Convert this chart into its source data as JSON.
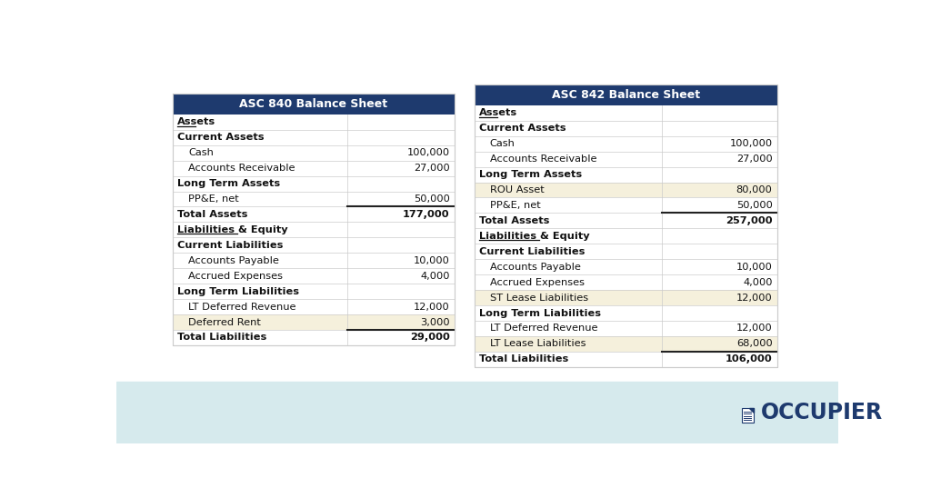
{
  "bg_color": "#ffffff",
  "header_bg": "#1e3a6e",
  "header_text_color": "#ffffff",
  "row_highlight": "#f5f0dc",
  "border_color": "#cccccc",
  "text_color": "#333333",
  "bold_color": "#111111",
  "footer_color": "#d6eaed",
  "occupier_text": "OCCUPIER",
  "occupier_color": "#1e3a6e",
  "left_table": {
    "title": "ASC 840 Balance Sheet",
    "rows": [
      {
        "label": "Assets",
        "value": "",
        "style": "underline_bold",
        "indent": 0,
        "highlight": false,
        "top_border": false
      },
      {
        "label": "Current Assets",
        "value": "",
        "style": "bold",
        "indent": 0,
        "highlight": false,
        "top_border": false
      },
      {
        "label": "Cash",
        "value": "100,000",
        "style": "normal",
        "indent": 1,
        "highlight": false,
        "top_border": false
      },
      {
        "label": "Accounts Receivable",
        "value": "27,000",
        "style": "normal",
        "indent": 1,
        "highlight": false,
        "top_border": false
      },
      {
        "label": "Long Term Assets",
        "value": "",
        "style": "bold",
        "indent": 0,
        "highlight": false,
        "top_border": false
      },
      {
        "label": "PP&E, net",
        "value": "50,000",
        "style": "normal",
        "indent": 1,
        "highlight": false,
        "top_border": false
      },
      {
        "label": "Total Assets",
        "value": "177,000",
        "style": "total",
        "indent": 0,
        "highlight": false,
        "top_border": true
      },
      {
        "label": "Liabilities & Equity",
        "value": "",
        "style": "underline_bold",
        "indent": 0,
        "highlight": false,
        "top_border": false
      },
      {
        "label": "Current Liabilities",
        "value": "",
        "style": "bold",
        "indent": 0,
        "highlight": false,
        "top_border": false
      },
      {
        "label": "Accounts Payable",
        "value": "10,000",
        "style": "normal",
        "indent": 1,
        "highlight": false,
        "top_border": false
      },
      {
        "label": "Accrued Expenses",
        "value": "4,000",
        "style": "normal",
        "indent": 1,
        "highlight": false,
        "top_border": false
      },
      {
        "label": "Long Term Liabilities",
        "value": "",
        "style": "bold",
        "indent": 0,
        "highlight": false,
        "top_border": false
      },
      {
        "label": "LT Deferred Revenue",
        "value": "12,000",
        "style": "normal",
        "indent": 1,
        "highlight": false,
        "top_border": false
      },
      {
        "label": "Deferred Rent",
        "value": "3,000",
        "style": "normal",
        "indent": 1,
        "highlight": true,
        "top_border": false
      },
      {
        "label": "Total Liabilities",
        "value": "29,000",
        "style": "total",
        "indent": 0,
        "highlight": false,
        "top_border": true
      }
    ]
  },
  "right_table": {
    "title": "ASC 842 Balance Sheet",
    "rows": [
      {
        "label": "Assets",
        "value": "",
        "style": "underline_bold",
        "indent": 0,
        "highlight": false,
        "top_border": false
      },
      {
        "label": "Current Assets",
        "value": "",
        "style": "bold",
        "indent": 0,
        "highlight": false,
        "top_border": false
      },
      {
        "label": "Cash",
        "value": "100,000",
        "style": "normal",
        "indent": 1,
        "highlight": false,
        "top_border": false
      },
      {
        "label": "Accounts Receivable",
        "value": "27,000",
        "style": "normal",
        "indent": 1,
        "highlight": false,
        "top_border": false
      },
      {
        "label": "Long Term Assets",
        "value": "",
        "style": "bold",
        "indent": 0,
        "highlight": false,
        "top_border": false
      },
      {
        "label": "ROU Asset",
        "value": "80,000",
        "style": "normal",
        "indent": 1,
        "highlight": true,
        "top_border": false
      },
      {
        "label": "PP&E, net",
        "value": "50,000",
        "style": "normal",
        "indent": 1,
        "highlight": false,
        "top_border": false
      },
      {
        "label": "Total Assets",
        "value": "257,000",
        "style": "total",
        "indent": 0,
        "highlight": false,
        "top_border": true
      },
      {
        "label": "Liabilities & Equity",
        "value": "",
        "style": "underline_bold",
        "indent": 0,
        "highlight": false,
        "top_border": false
      },
      {
        "label": "Current Liabilities",
        "value": "",
        "style": "bold",
        "indent": 0,
        "highlight": false,
        "top_border": false
      },
      {
        "label": "Accounts Payable",
        "value": "10,000",
        "style": "normal",
        "indent": 1,
        "highlight": false,
        "top_border": false
      },
      {
        "label": "Accrued Expenses",
        "value": "4,000",
        "style": "normal",
        "indent": 1,
        "highlight": false,
        "top_border": false
      },
      {
        "label": "ST Lease Liabilities",
        "value": "12,000",
        "style": "normal",
        "indent": 1,
        "highlight": true,
        "top_border": false
      },
      {
        "label": "Long Term Liabilities",
        "value": "",
        "style": "bold",
        "indent": 0,
        "highlight": false,
        "top_border": false
      },
      {
        "label": "LT Deferred Revenue",
        "value": "12,000",
        "style": "normal",
        "indent": 1,
        "highlight": false,
        "top_border": false
      },
      {
        "label": "LT Lease Liabilities",
        "value": "68,000",
        "style": "normal",
        "indent": 1,
        "highlight": true,
        "top_border": false
      },
      {
        "label": "Total Liabilities",
        "value": "106,000",
        "style": "total",
        "indent": 0,
        "highlight": false,
        "top_border": true
      }
    ]
  }
}
